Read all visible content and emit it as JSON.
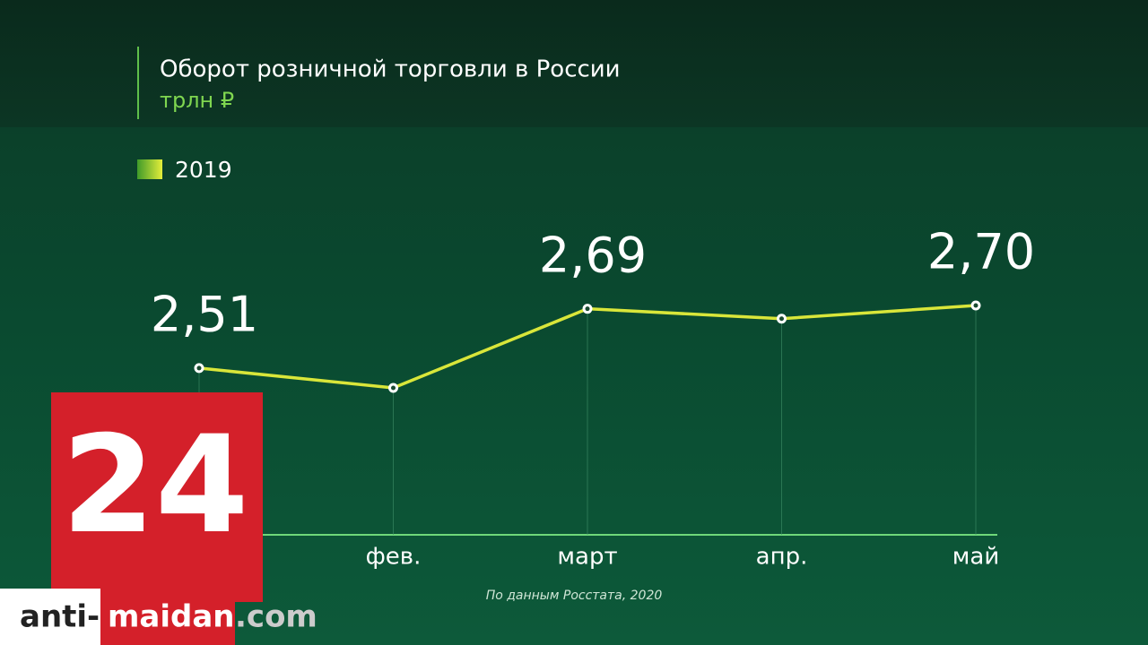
{
  "chart_data": {
    "type": "line",
    "title": "Оборот розничной торговли в России",
    "subtitle": "трлн ₽",
    "categories": [
      null,
      "фев.",
      "март",
      "апр.",
      "май"
    ],
    "series": [
      {
        "name": "2019",
        "color": "#d9e63a",
        "values": [
          2.51,
          2.45,
          2.69,
          2.66,
          2.7
        ],
        "value_labels": [
          "2,51",
          null,
          "2,69",
          null,
          "2,70"
        ]
      }
    ],
    "source": "По данным Росстата, 2020"
  },
  "logo": "24",
  "watermark": {
    "part1": "anti-",
    "part2": "maidan",
    "part3": ".com"
  }
}
